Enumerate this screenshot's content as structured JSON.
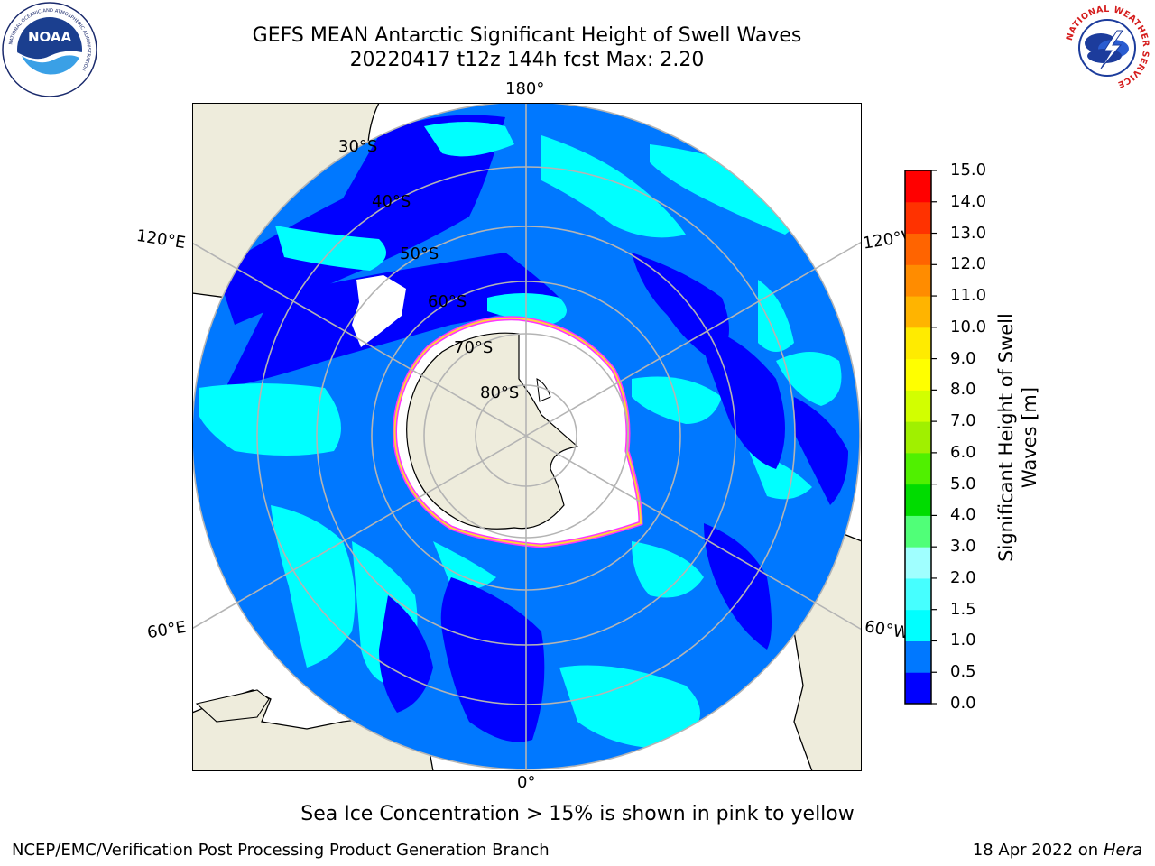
{
  "title": {
    "line1": "GEFS MEAN Antarctic Significant Height of Swell Waves",
    "line2": "20220417 t12z 144h fcst   Max: 2.20"
  },
  "map": {
    "projection": "south-polar-stereographic",
    "longitude_labels": [
      "180°",
      "120°E",
      "120°W",
      "60°E",
      "60°W",
      "0°"
    ],
    "latitude_labels": [
      "30°S",
      "40°S",
      "50°S",
      "60°S",
      "70°S",
      "80°S"
    ],
    "colors": {
      "land": "#eeecdc",
      "coastline": "#000000",
      "gridline": "#b4b4b4",
      "ice_edge_outer": "#ff33ff",
      "ice_edge_inner": "#ffd23c",
      "ice_interior": "#ffffff"
    }
  },
  "colorbar": {
    "label": "Significant Height of Swell Waves [m]",
    "ticks": [
      "0.0",
      "0.5",
      "1.0",
      "1.5",
      "2.0",
      "3.0",
      "4.0",
      "5.0",
      "6.0",
      "7.0",
      "8.0",
      "9.0",
      "10.0",
      "11.0",
      "12.0",
      "13.0",
      "14.0",
      "15.0"
    ],
    "colors": [
      "#0000ff",
      "#0078ff",
      "#00ffff",
      "#46ffff",
      "#a0ffff",
      "#50ff78",
      "#00dc00",
      "#50f000",
      "#a0f000",
      "#d2ff00",
      "#ffff00",
      "#ffeb00",
      "#ffb400",
      "#ff8c00",
      "#ff6400",
      "#ff3200",
      "#ff0000"
    ]
  },
  "notes": {
    "sea_ice": "Sea Ice Concentration > 15% is shown in pink to yellow"
  },
  "footer": {
    "left": "NCEP/EMC/Verification Post Processing Product Generation Branch",
    "date": "18 Apr 2022 on",
    "host": "Hera"
  },
  "logos": {
    "noaa": {
      "text": "NOAA",
      "ring_text": "NATIONAL OCEANIC AND ATMOSPHERIC ADMINISTRATION"
    },
    "nws": {
      "ring_text": "NATIONAL WEATHER SERVICE"
    }
  }
}
